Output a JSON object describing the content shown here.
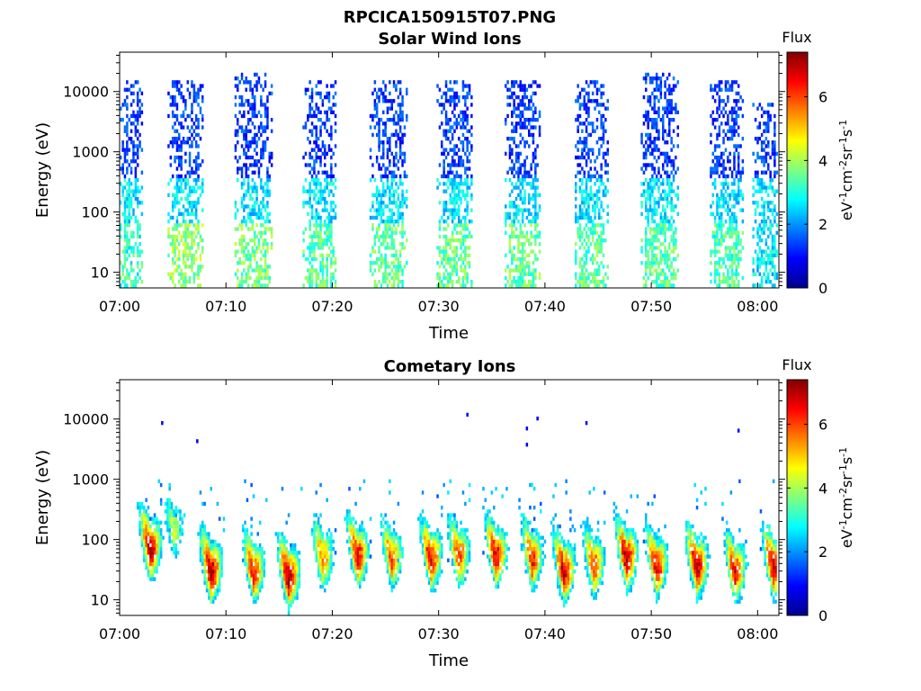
{
  "figure_title": "RPCICA150915T07.PNG",
  "colorbar": {
    "title": "Flux",
    "label": "eV-1cm-2sr-1s-1",
    "ticks": [
      0,
      2,
      4,
      6
    ],
    "range": [
      0,
      7.4
    ],
    "colormap": "jet"
  },
  "chart_data": [
    {
      "type": "heatmap",
      "title": "Solar Wind Ions",
      "xlabel": "Time",
      "ylabel": "Energy (eV)",
      "y_scale": "log",
      "ylim": [
        5.5,
        45000
      ],
      "xlim": [
        "07:00",
        "08:02"
      ],
      "x_ticks": [
        "07:00",
        "07:10",
        "07:20",
        "07:30",
        "07:40",
        "07:50",
        "08:00"
      ],
      "y_ticks": [
        10,
        100,
        1000,
        10000
      ],
      "grid": false,
      "bursts": [
        {
          "start": "07:00.0",
          "end": "07:02.0",
          "emax": 15000,
          "low_flux": 3.2
        },
        {
          "start": "07:04.5",
          "end": "07:07.8",
          "emax": 15000,
          "low_flux": 3.9
        },
        {
          "start": "07:10.8",
          "end": "07:14.2",
          "emax": 20000,
          "low_flux": 3.7
        },
        {
          "start": "07:17.2",
          "end": "07:20.2",
          "emax": 15000,
          "low_flux": 3.5
        },
        {
          "start": "07:23.5",
          "end": "07:27.0",
          "emax": 15000,
          "low_flux": 3.6
        },
        {
          "start": "07:29.8",
          "end": "07:33.2",
          "emax": 15000,
          "low_flux": 3.6
        },
        {
          "start": "07:36.2",
          "end": "07:39.6",
          "emax": 15000,
          "low_flux": 3.6
        },
        {
          "start": "07:42.8",
          "end": "07:46.0",
          "emax": 15000,
          "low_flux": 3.5
        },
        {
          "start": "07:49.0",
          "end": "07:52.6",
          "emax": 20000,
          "low_flux": 3.5
        },
        {
          "start": "07:55.5",
          "end": "07:58.6",
          "emax": 15000,
          "low_flux": 3.4
        },
        {
          "start": "07:59.5",
          "end": "08:02.0",
          "emax": 6000,
          "low_flux": 2.8
        }
      ]
    },
    {
      "type": "heatmap",
      "title": "Cometary Ions",
      "xlabel": "Time",
      "ylabel": "Energy (eV)",
      "y_scale": "log",
      "ylim": [
        5.5,
        45000
      ],
      "xlim": [
        "07:00",
        "08:02"
      ],
      "x_ticks": [
        "07:00",
        "07:10",
        "07:20",
        "07:30",
        "07:40",
        "07:50",
        "08:00"
      ],
      "y_ticks": [
        10,
        100,
        1000,
        10000
      ],
      "grid": false,
      "bursts": [
        {
          "time": "07:02.8",
          "peak_energy": 60,
          "peak_flux": 7.0
        },
        {
          "time": "07:05.0",
          "peak_energy": 120,
          "peak_flux": 4.3
        },
        {
          "time": "07:08.5",
          "peak_energy": 25,
          "peak_flux": 7.2
        },
        {
          "time": "07:12.5",
          "peak_energy": 25,
          "peak_flux": 6.4
        },
        {
          "time": "07:15.8",
          "peak_energy": 20,
          "peak_flux": 7.1
        },
        {
          "time": "07:19.0",
          "peak_energy": 40,
          "peak_flux": 5.6
        },
        {
          "time": "07:22.3",
          "peak_energy": 45,
          "peak_flux": 6.6
        },
        {
          "time": "07:25.5",
          "peak_energy": 40,
          "peak_flux": 5.8
        },
        {
          "time": "07:29.2",
          "peak_energy": 40,
          "peak_flux": 6.6
        },
        {
          "time": "07:31.8",
          "peak_energy": 45,
          "peak_flux": 6.1
        },
        {
          "time": "07:35.3",
          "peak_energy": 45,
          "peak_flux": 6.7
        },
        {
          "time": "07:38.7",
          "peak_energy": 40,
          "peak_flux": 6.2
        },
        {
          "time": "07:41.7",
          "peak_energy": 25,
          "peak_flux": 6.9
        },
        {
          "time": "07:44.5",
          "peak_energy": 30,
          "peak_flux": 6.0
        },
        {
          "time": "07:47.6",
          "peak_energy": 40,
          "peak_flux": 7.0
        },
        {
          "time": "07:50.4",
          "peak_energy": 30,
          "peak_flux": 6.5
        },
        {
          "time": "07:54.2",
          "peak_energy": 30,
          "peak_flux": 7.0
        },
        {
          "time": "07:57.8",
          "peak_energy": 25,
          "peak_flux": 6.4
        },
        {
          "time": "08:01.4",
          "peak_energy": 30,
          "peak_flux": 6.9
        }
      ],
      "isolated_points": [
        {
          "time": "07:03.9",
          "energy": 8000
        },
        {
          "time": "07:07.2",
          "energy": 4000
        },
        {
          "time": "07:32.6",
          "energy": 11000
        },
        {
          "time": "07:38.2",
          "energy": 6500
        },
        {
          "time": "07:38.2",
          "energy": 3500
        },
        {
          "time": "07:39.2",
          "energy": 9500
        },
        {
          "time": "07:43.8",
          "energy": 8000
        },
        {
          "time": "07:58.1",
          "energy": 6000
        }
      ]
    }
  ]
}
